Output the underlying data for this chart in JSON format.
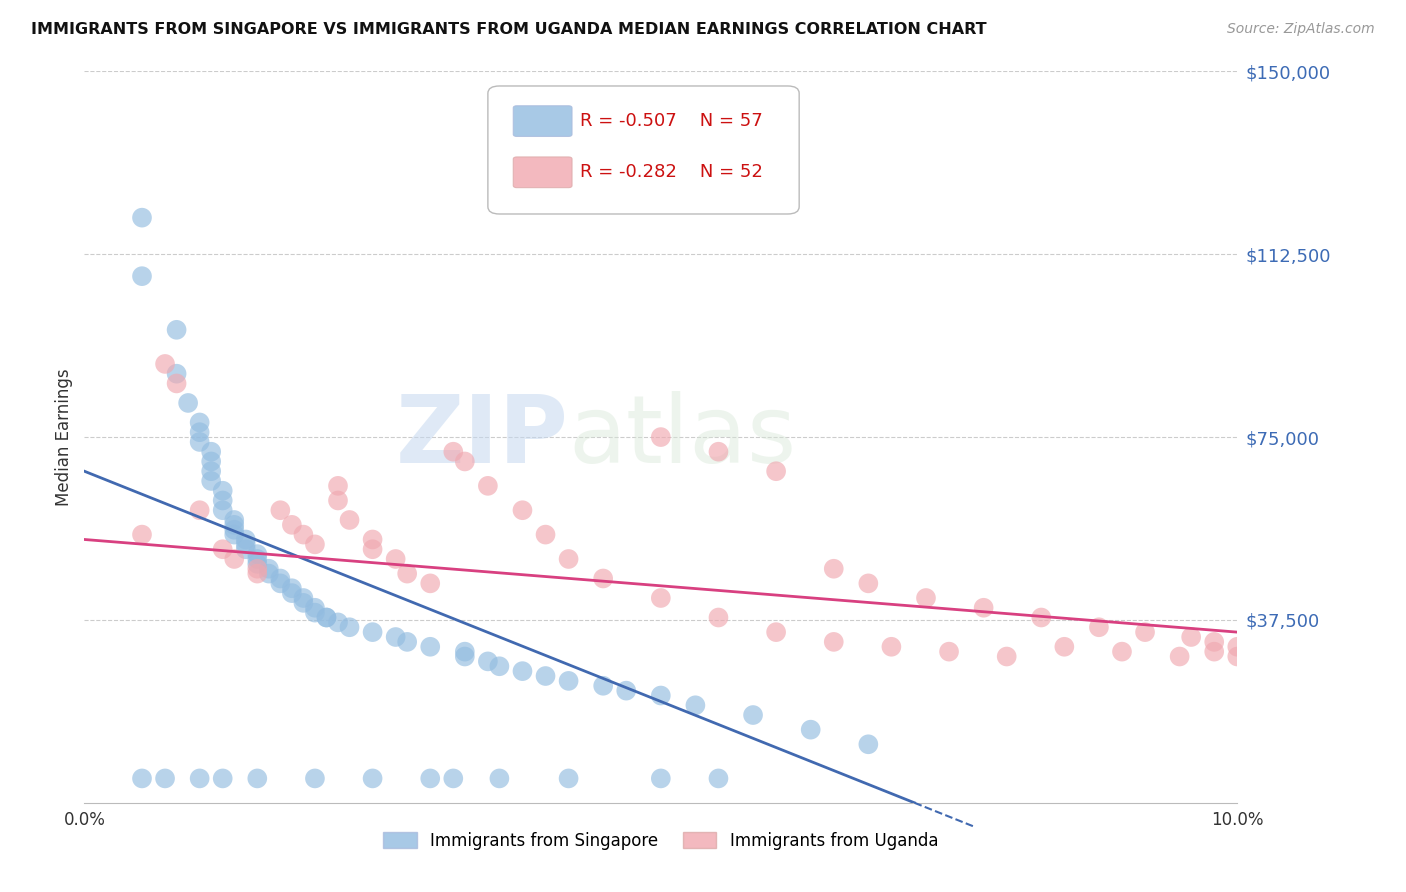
{
  "title": "IMMIGRANTS FROM SINGAPORE VS IMMIGRANTS FROM UGANDA MEDIAN EARNINGS CORRELATION CHART",
  "source": "Source: ZipAtlas.com",
  "ylabel_label": "Median Earnings",
  "x_min": 0.0,
  "x_max": 0.1,
  "y_min": 0,
  "y_max": 150000,
  "y_ticks": [
    37500,
    75000,
    112500,
    150000
  ],
  "y_tick_labels": [
    "$37,500",
    "$75,000",
    "$112,500",
    "$150,000"
  ],
  "x_ticks": [
    0.0,
    0.1
  ],
  "x_tick_labels": [
    "0.0%",
    "10.0%"
  ],
  "legend_r1": "R = -0.507",
  "legend_n1": "N = 57",
  "legend_r2": "R = -0.282",
  "legend_n2": "N = 52",
  "color_singapore": "#92bce0",
  "color_uganda": "#f0a8b0",
  "line_color_singapore": "#4169b0",
  "line_color_uganda": "#d84080",
  "watermark_zip": "ZIP",
  "watermark_atlas": "atlas",
  "sg_line_x0": 0.0,
  "sg_line_y0": 68000,
  "sg_line_x1": 0.072,
  "sg_line_y1": 0,
  "ug_line_x0": 0.0,
  "ug_line_y0": 54000,
  "ug_line_x1": 0.1,
  "ug_line_y1": 35000,
  "singapore_x": [
    0.005,
    0.005,
    0.008,
    0.008,
    0.009,
    0.01,
    0.01,
    0.01,
    0.011,
    0.011,
    0.011,
    0.011,
    0.012,
    0.012,
    0.012,
    0.013,
    0.013,
    0.013,
    0.013,
    0.014,
    0.014,
    0.014,
    0.015,
    0.015,
    0.015,
    0.016,
    0.016,
    0.017,
    0.017,
    0.018,
    0.018,
    0.019,
    0.019,
    0.02,
    0.02,
    0.021,
    0.021,
    0.022,
    0.023,
    0.025,
    0.027,
    0.028,
    0.03,
    0.033,
    0.033,
    0.035,
    0.036,
    0.038,
    0.04,
    0.042,
    0.045,
    0.047,
    0.05,
    0.053,
    0.058,
    0.063,
    0.068
  ],
  "singapore_y": [
    120000,
    108000,
    97000,
    88000,
    82000,
    78000,
    76000,
    74000,
    72000,
    70000,
    68000,
    66000,
    64000,
    62000,
    60000,
    58000,
    57000,
    56000,
    55000,
    54000,
    53000,
    52000,
    51000,
    50000,
    49000,
    48000,
    47000,
    46000,
    45000,
    44000,
    43000,
    42000,
    41000,
    40000,
    39000,
    38000,
    38000,
    37000,
    36000,
    35000,
    34000,
    33000,
    32000,
    31000,
    30000,
    29000,
    28000,
    27000,
    26000,
    25000,
    24000,
    23000,
    22000,
    20000,
    18000,
    15000,
    12000
  ],
  "singapore_outliers_x": [
    0.005,
    0.007,
    0.01,
    0.012,
    0.015,
    0.02,
    0.025,
    0.03,
    0.032,
    0.036,
    0.042,
    0.05,
    0.055
  ],
  "singapore_outliers_y": [
    5000,
    5000,
    5000,
    5000,
    5000,
    5000,
    5000,
    5000,
    5000,
    5000,
    5000,
    5000,
    5000
  ],
  "uganda_x": [
    0.005,
    0.007,
    0.008,
    0.01,
    0.012,
    0.013,
    0.015,
    0.015,
    0.017,
    0.018,
    0.019,
    0.02,
    0.022,
    0.022,
    0.023,
    0.025,
    0.025,
    0.027,
    0.028,
    0.03,
    0.032,
    0.033,
    0.035,
    0.038,
    0.04,
    0.042,
    0.045,
    0.05,
    0.055,
    0.06,
    0.065,
    0.07,
    0.075,
    0.08,
    0.085,
    0.09,
    0.095,
    0.098,
    0.1,
    0.05,
    0.055,
    0.06,
    0.065,
    0.068,
    0.073,
    0.078,
    0.083,
    0.088,
    0.092,
    0.096,
    0.098,
    0.1
  ],
  "uganda_y": [
    55000,
    90000,
    86000,
    60000,
    52000,
    50000,
    48000,
    47000,
    60000,
    57000,
    55000,
    53000,
    65000,
    62000,
    58000,
    54000,
    52000,
    50000,
    47000,
    45000,
    72000,
    70000,
    65000,
    60000,
    55000,
    50000,
    46000,
    42000,
    38000,
    35000,
    33000,
    32000,
    31000,
    30000,
    32000,
    31000,
    30000,
    31000,
    30000,
    75000,
    72000,
    68000,
    48000,
    45000,
    42000,
    40000,
    38000,
    36000,
    35000,
    34000,
    33000,
    32000
  ]
}
